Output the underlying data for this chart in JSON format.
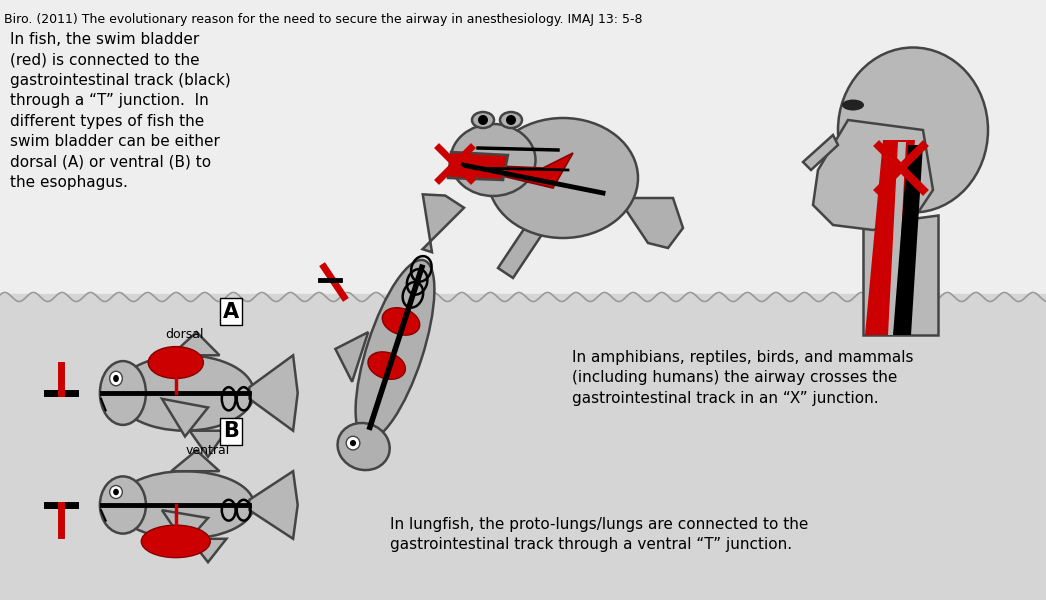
{
  "title": "Biro. (2011) The evolutionary reason for the need to secure the airway in anesthesiology. IMAJ 13: 5-8",
  "fish_text_left": "In fish, the swim bladder\n(red) is connected to the\ngastrointestinal track (black)\nthrough a “T” junction.  In\ndifferent types of fish the\nswim bladder can be either\ndorsal (A) or ventral (B) to\nthe esophagus.",
  "amphibian_text": "In amphibians, reptiles, birds, and mammals\n(including humans) the airway crosses the\ngastrointestinal track in an “X” junction.",
  "lungfish_text": "In lungfish, the proto-lungs/lungs are connected to the\ngastrointestinal track through a ventral “T” junction.",
  "bg_top": "#eeeeee",
  "bg_bottom": "#d8d8d8",
  "gray_body": "#b0b0b0",
  "red": "#cc0000",
  "black": "#000000"
}
